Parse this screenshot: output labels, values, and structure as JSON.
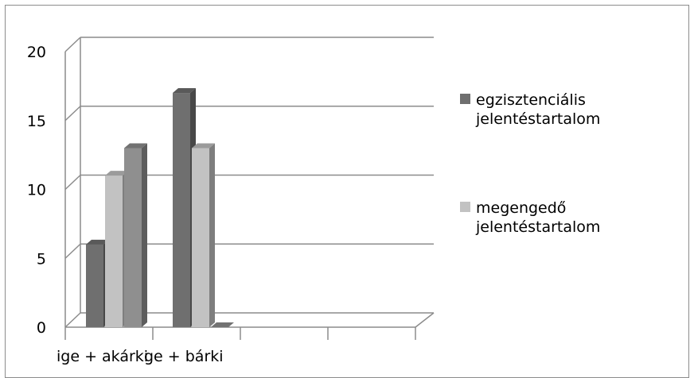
{
  "chart_data": {
    "type": "bar",
    "style": "3d-clustered-column",
    "categories": [
      "ige + akárki",
      "ge + bárki"
    ],
    "series": [
      {
        "name": "egzisztenciális jelentéstartalom",
        "values": [
          6,
          17
        ],
        "color": "#6f6f6f"
      },
      {
        "name": "megengedő jelentéstartalom",
        "values": [
          11,
          13
        ],
        "color": "#c2c2c2"
      },
      {
        "name": "",
        "values": [
          13,
          0
        ],
        "color": "#8f8f8f"
      }
    ],
    "title": "",
    "xlabel": "",
    "ylabel": "",
    "ylim": [
      0,
      20
    ],
    "yticks": [
      "0",
      "5",
      "10",
      "15",
      "20"
    ],
    "grid": true,
    "legend": {
      "position": "right",
      "entries": [
        {
          "lines": [
            "egzisztenciális",
            "jelentéstartalom"
          ],
          "color": "#6f6f6f"
        },
        {
          "lines": [
            "megengedő",
            "jelentéstartalom"
          ],
          "color": "#c2c2c2"
        }
      ]
    }
  }
}
